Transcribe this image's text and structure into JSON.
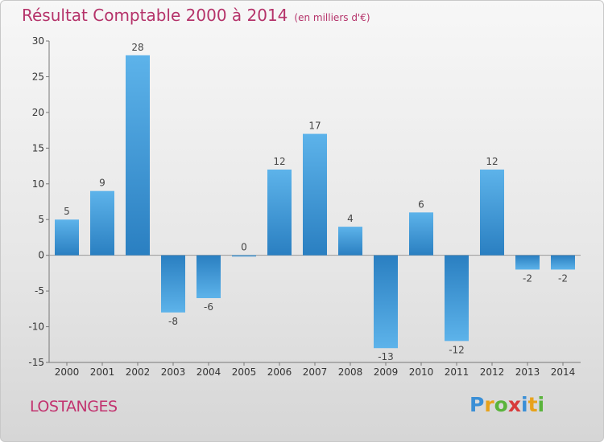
{
  "title": "Résultat Comptable 2000 à 2014",
  "subtitle": "(en milliers d'€)",
  "commune": "LOSTANGES",
  "logo": {
    "text": "Proxiti",
    "letters": [
      {
        "ch": "P",
        "color": "#3a8fd6"
      },
      {
        "ch": "r",
        "color": "#e8a21a"
      },
      {
        "ch": "o",
        "color": "#5ab43c"
      },
      {
        "ch": "x",
        "color": "#d83a3a"
      },
      {
        "ch": "i",
        "color": "#3a8fd6"
      },
      {
        "ch": "t",
        "color": "#e8a21a"
      },
      {
        "ch": "i",
        "color": "#5ab43c"
      }
    ]
  },
  "chart_data": {
    "type": "bar",
    "title": "Résultat Comptable 2000 à 2014",
    "subtitle": "(en milliers d'€)",
    "categories": [
      "2000",
      "2001",
      "2002",
      "2003",
      "2004",
      "2005",
      "2006",
      "2007",
      "2008",
      "2009",
      "2010",
      "2011",
      "2012",
      "2013",
      "2014"
    ],
    "values": [
      5,
      9,
      28,
      -8,
      -6,
      0,
      12,
      17,
      4,
      -13,
      6,
      -12,
      12,
      -2,
      -2
    ],
    "ylim": [
      -15,
      30
    ],
    "yticks": [
      30,
      25,
      20,
      15,
      10,
      5,
      0,
      -5,
      -10,
      -15
    ],
    "grid": false,
    "colors": {
      "bar_dark": "#2a7fc1",
      "bar_light": "#5db3ea"
    }
  }
}
